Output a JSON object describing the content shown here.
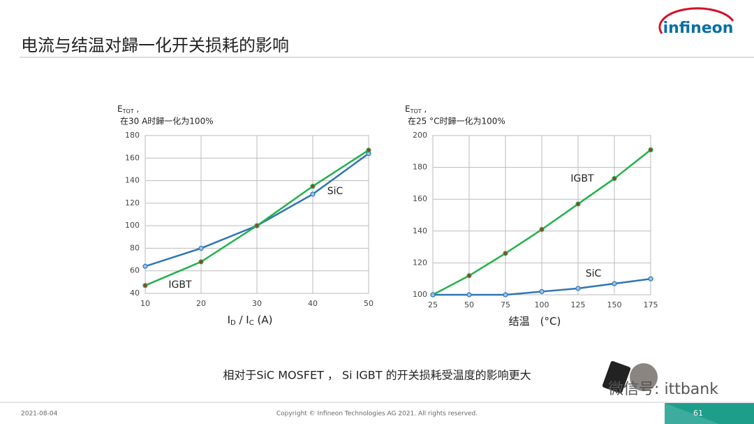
{
  "slide": {
    "title": "电流与结温对歸一化开关损耗的影响",
    "logo": "infineon",
    "caption": "相对于SiC MOSFET ， Si IGBT 的开关损耗受温度的影响更大",
    "date": "2021-08-04",
    "copyright": "Copyright © Infineon Technologies AG 2021. All rights reserved.",
    "page": "61",
    "watermark": "微信号: ittbank"
  },
  "chart_data": [
    {
      "type": "line",
      "ylabel": [
        "E",
        "TOT",
        " ,"
      ],
      "ylabel_note": "在30 A时歸一化为100%",
      "xlabel": [
        "I",
        "D",
        " / I",
        "C",
        " (A)"
      ],
      "x": [
        10,
        20,
        30,
        40,
        50
      ],
      "xlim": [
        10,
        50
      ],
      "xticks": [
        10,
        20,
        30,
        40,
        50
      ],
      "ylim": [
        40,
        180
      ],
      "yticks": [
        40,
        60,
        80,
        100,
        120,
        140,
        160,
        180
      ],
      "grid": true,
      "series": [
        {
          "name": "SiC",
          "color": "#2e75b6",
          "values": [
            64,
            80,
            100,
            128,
            164
          ]
        },
        {
          "name": "IGBT",
          "color": "#22b14c",
          "values": [
            47,
            68,
            100,
            135,
            167
          ]
        }
      ]
    },
    {
      "type": "line",
      "ylabel": [
        "E",
        "TOT",
        " ,"
      ],
      "ylabel_note": "在25 °C时歸一化为100%",
      "xlabel": [
        "结温　(°C)"
      ],
      "x": [
        25,
        50,
        75,
        100,
        125,
        150,
        175
      ],
      "xlim": [
        25,
        175
      ],
      "xticks": [
        25,
        50,
        75,
        100,
        125,
        150,
        175
      ],
      "ylim": [
        100,
        200
      ],
      "yticks": [
        100,
        120,
        140,
        160,
        180,
        200
      ],
      "grid": true,
      "series": [
        {
          "name": "IGBT",
          "color": "#22b14c",
          "values": [
            100,
            112,
            126,
            141,
            157,
            173,
            191
          ]
        },
        {
          "name": "SiC",
          "color": "#2e75b6",
          "values": [
            100,
            100,
            100,
            102,
            104,
            107,
            110
          ]
        }
      ]
    }
  ]
}
